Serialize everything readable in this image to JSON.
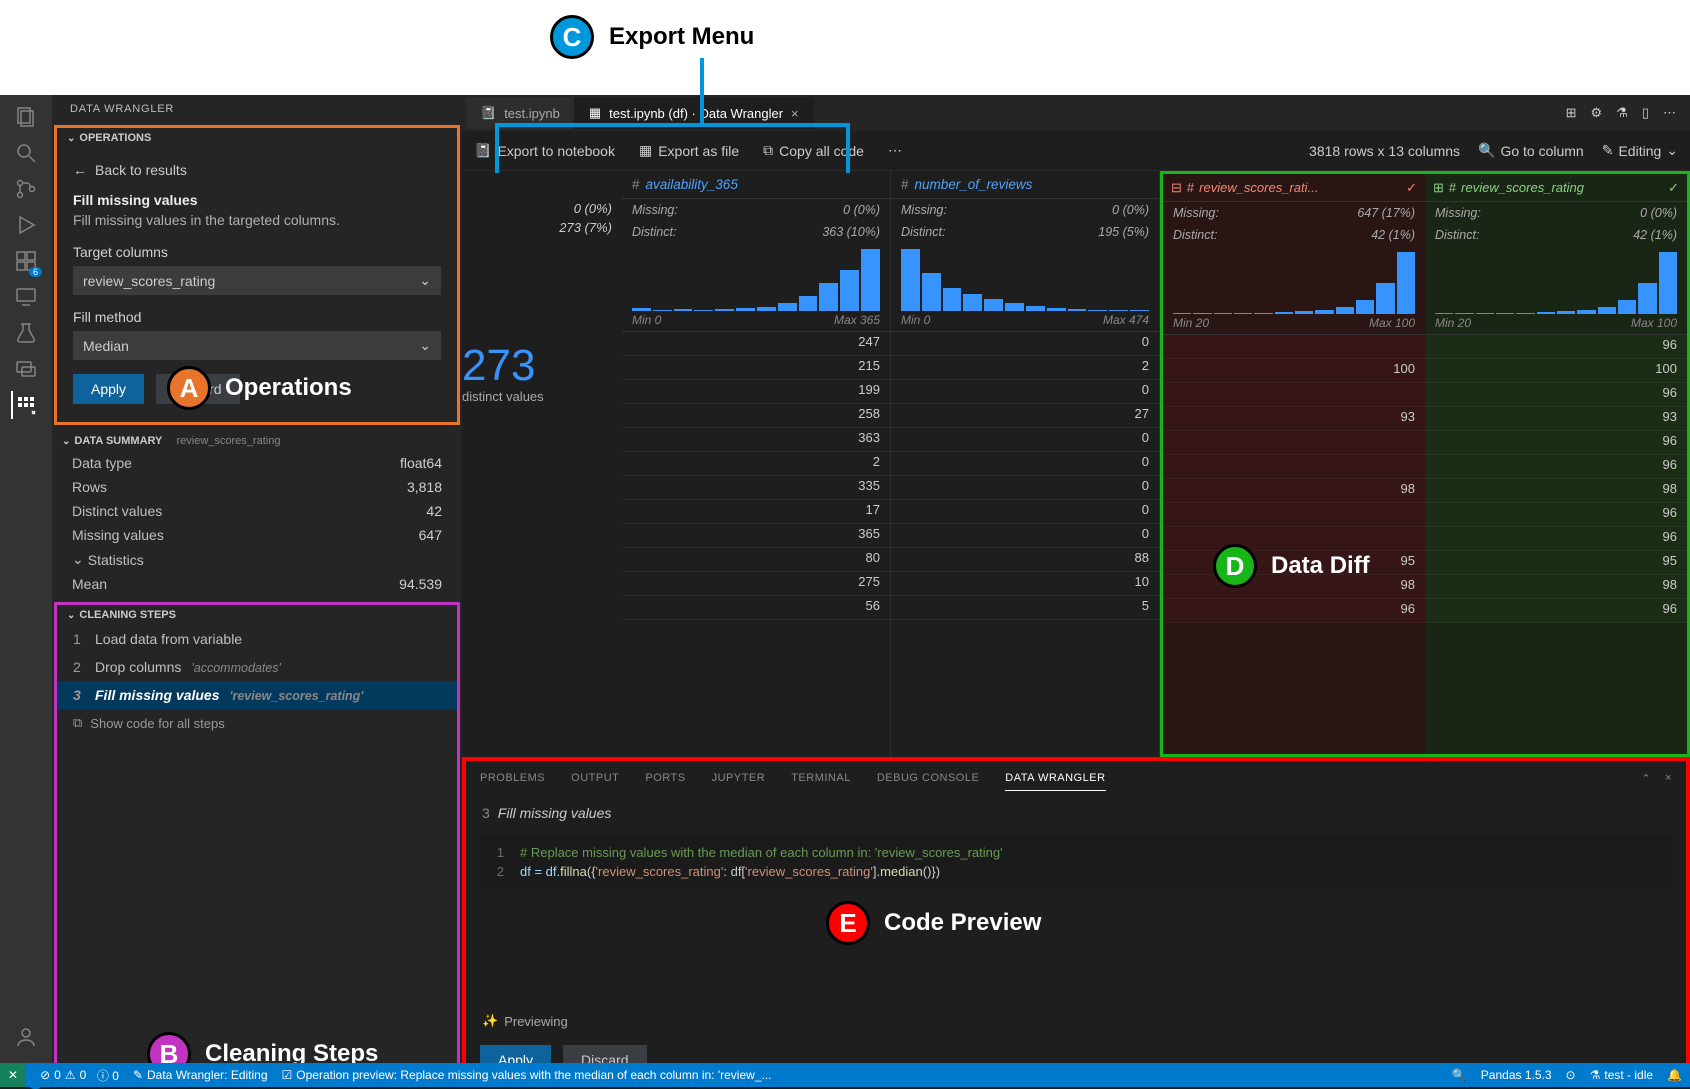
{
  "annotations": {
    "C": {
      "letter": "C",
      "label": "Export Menu"
    },
    "A": {
      "letter": "A",
      "label": "Operations"
    },
    "B": {
      "letter": "B",
      "label": "Cleaning Steps"
    },
    "D": {
      "letter": "D",
      "label": "Data Diff"
    },
    "E": {
      "letter": "E",
      "label": "Code Preview"
    }
  },
  "sidebar": {
    "title": "DATA WRANGLER",
    "operations": {
      "head": "OPERATIONS",
      "back": "Back to results",
      "op_title": "Fill missing values",
      "op_desc": "Fill missing values in the targeted columns.",
      "target_label": "Target columns",
      "target_value": "review_scores_rating",
      "method_label": "Fill method",
      "method_value": "Median",
      "apply": "Apply",
      "discard": "Discard"
    },
    "summary": {
      "head": "DATA SUMMARY",
      "col": "review_scores_rating",
      "rows": [
        {
          "k": "Data type",
          "v": "float64"
        },
        {
          "k": "Rows",
          "v": "3,818"
        },
        {
          "k": "Distinct values",
          "v": "42"
        },
        {
          "k": "Missing values",
          "v": "647"
        }
      ],
      "stats_head": "Statistics",
      "mean": {
        "k": "Mean",
        "v": "94.539"
      }
    },
    "cleaning": {
      "head": "CLEANING STEPS",
      "steps": [
        {
          "n": "1",
          "label": "Load data from variable",
          "param": ""
        },
        {
          "n": "2",
          "label": "Drop columns",
          "param": "'accommodates'"
        },
        {
          "n": "3",
          "label": "Fill missing values",
          "param": "'review_scores_rating'"
        }
      ],
      "show_code": "Show code for all steps"
    }
  },
  "tabs": {
    "t1": "test.ipynb",
    "t2_prefix": "test.ipynb (df)",
    "t2_suffix": "Data Wrangler",
    "icons": {
      "layout": "⊞",
      "settings": "⚙",
      "beaker": "⚗",
      "panel": "▯",
      "more": "⋯"
    }
  },
  "toolbar": {
    "export_nb": "Export to notebook",
    "export_file": "Export as file",
    "copy_code": "Copy all code",
    "more": "⋯",
    "shape": "3818 rows x 13 columns",
    "goto": "Go to column",
    "mode": "Editing"
  },
  "grid": {
    "first_meta": {
      "missing": "0 (0%)",
      "distinct": "273 (7%)",
      "big": "273",
      "big_sub": "distinct values"
    },
    "columns": [
      {
        "name": "availability_365",
        "type": "#",
        "missing": "0 (0%)",
        "distinct": "363 (10%)",
        "min": "Min 0",
        "max": "Max 365",
        "hist": [
          4,
          2,
          3,
          2,
          3,
          4,
          6,
          12,
          22,
          40,
          60,
          90
        ],
        "cells": [
          "247",
          "215",
          "199",
          "258",
          "363",
          "2",
          "335",
          "17",
          "365",
          "80",
          "275",
          "56"
        ]
      },
      {
        "name": "number_of_reviews",
        "type": "#",
        "missing": "0 (0%)",
        "distinct": "195 (5%)",
        "min": "Min 0",
        "max": "Max 474",
        "hist": [
          90,
          55,
          34,
          24,
          18,
          12,
          8,
          5,
          3,
          2,
          1,
          1
        ],
        "cells": [
          "0",
          "2",
          "0",
          "27",
          "0",
          "0",
          "0",
          "0",
          "0",
          "88",
          "10",
          "5"
        ]
      }
    ],
    "diff": {
      "left": {
        "name": "review_scores_rati...",
        "icon": "⊟",
        "missing": "647 (17%)",
        "distinct": "42 (1%)",
        "min": "Min 20",
        "max": "Max 100",
        "hist": [
          1,
          1,
          1,
          2,
          2,
          3,
          4,
          6,
          10,
          20,
          45,
          90
        ],
        "cells": [
          "",
          "100",
          "",
          "93",
          "",
          "",
          "98",
          "",
          "",
          "95",
          "98",
          "96"
        ]
      },
      "right": {
        "name": "review_scores_rating",
        "icon": "⊞",
        "missing": "0 (0%)",
        "distinct": "42 (1%)",
        "min": "Min 20",
        "max": "Max 100",
        "hist": [
          1,
          1,
          1,
          2,
          2,
          3,
          4,
          6,
          10,
          20,
          45,
          90
        ],
        "cells": [
          "96",
          "100",
          "96",
          "93",
          "96",
          "96",
          "98",
          "96",
          "96",
          "95",
          "98",
          "96"
        ]
      }
    }
  },
  "panel": {
    "tabs": [
      "PROBLEMS",
      "OUTPUT",
      "PORTS",
      "JUPYTER",
      "TERMINAL",
      "DEBUG CONSOLE",
      "DATA WRANGLER"
    ],
    "active": "DATA WRANGLER",
    "step_n": "3",
    "step_title": "Fill missing values",
    "code": {
      "l1": "# Replace missing values with the median of each column in: 'review_scores_rating'",
      "l2_a": "df = df.",
      "l2_b": "fillna",
      "l2_c": "({",
      "l2_d": "'review_scores_rating'",
      "l2_e": ": df[",
      "l2_f": "'review_scores_rating'",
      "l2_g": "].",
      "l2_h": "median",
      "l2_i": "()})"
    },
    "previewing": "Previewing",
    "apply": "Apply",
    "discard": "Discard"
  },
  "statusbar": {
    "errors": "0",
    "warnings": "0",
    "wrangler": "Data Wrangler: Editing",
    "preview": "Operation preview: Replace missing values with the median of each column in: 'review_...",
    "pandas": "Pandas 1.5.3",
    "kernel": "test - idle"
  },
  "activity_badges": {
    "ext": "6",
    "settings": "1"
  },
  "colors": {
    "accent": "#007acc",
    "orange": "#e8742c",
    "purple": "#c233c2",
    "green": "#17b517",
    "red": "#ff0000",
    "cyan": "#0098db"
  }
}
